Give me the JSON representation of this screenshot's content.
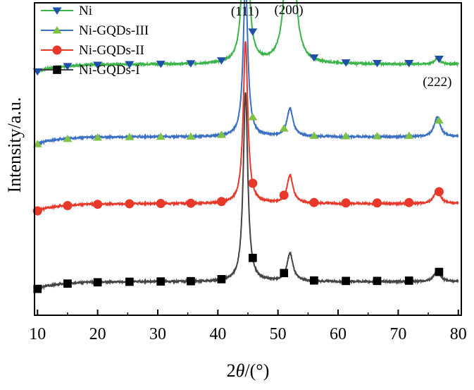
{
  "chart_data": {
    "type": "line",
    "title": "",
    "xlabel_parts": [
      "2",
      "θ",
      "/(°)"
    ],
    "ylabel": "Intensity/a.u.",
    "xlim": [
      9.5,
      80.5
    ],
    "y_ticks_shown": false,
    "x_ticks": [
      10,
      20,
      30,
      40,
      50,
      60,
      70,
      80
    ],
    "grid": false,
    "legend_position": "top-left",
    "peak_labels": [
      {
        "text": "(111)",
        "x": 44.5
      },
      {
        "text": "(200)",
        "x": 51.8
      },
      {
        "text": "(222)",
        "x": 76.5
      }
    ],
    "series": [
      {
        "name": "Ni",
        "color": "#3bb54a",
        "marker_color": "#1f4fa8",
        "marker": "triangle-down",
        "baseline": 0.83,
        "peak_heights": [
          0.9,
          1.0,
          0.02
        ],
        "markers_x": [
          10,
          15,
          20,
          25.3,
          30.5,
          35.5,
          40.6,
          45.8,
          51,
          56,
          61.3,
          66.5,
          71.8,
          76.8
        ]
      },
      {
        "name": "Ni-GQDs-III",
        "color": "#3a6fc4",
        "marker_color": "#7dc242",
        "marker": "triangle-up",
        "baseline": 0.57,
        "peak_heights": [
          0.58,
          0.1,
          0.07
        ],
        "markers_x": [
          10,
          15,
          20,
          25.3,
          30.5,
          35.5,
          40.6,
          45.8,
          51,
          56,
          61.3,
          66.5,
          71.8,
          76.8
        ]
      },
      {
        "name": "Ni-GQDs-II",
        "color": "#e8382a",
        "marker_color": "#e8382a",
        "marker": "circle",
        "baseline": 0.33,
        "peak_heights": [
          0.6,
          0.1,
          0.05
        ],
        "markers_x": [
          10,
          15,
          20,
          25.3,
          30.5,
          35.5,
          40.6,
          45.8,
          51,
          56,
          61.3,
          66.5,
          71.8,
          76.8
        ]
      },
      {
        "name": "Ni-GQDs-I",
        "color": "#444444",
        "marker_color": "#000000",
        "marker": "square",
        "baseline": 0.05,
        "peak_heights": [
          0.7,
          0.1,
          0.04
        ],
        "markers_x": [
          10,
          15,
          20,
          25.3,
          30.5,
          35.5,
          40.6,
          45.8,
          51,
          56,
          61.3,
          66.5,
          71.8,
          76.8
        ]
      }
    ]
  }
}
